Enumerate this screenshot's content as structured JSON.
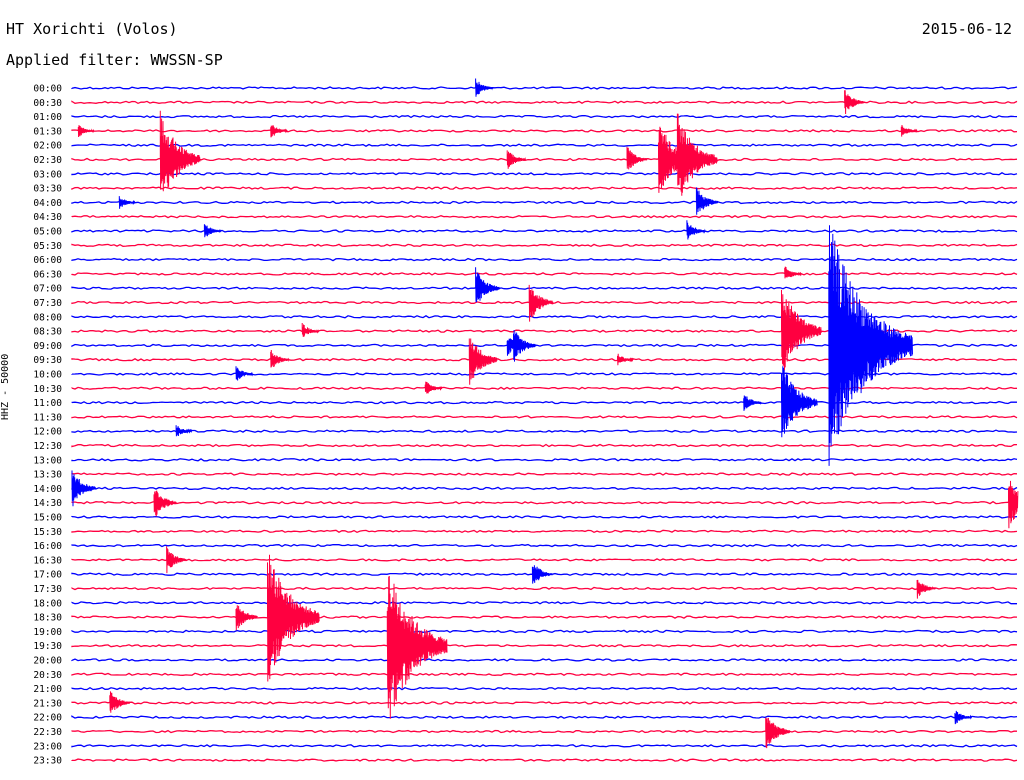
{
  "header": {
    "station": "HT Xorichti (Volos)",
    "date": "2015-06-12",
    "filter": "Applied filter: WWSSN-SP"
  },
  "chart_data": {
    "type": "line",
    "title": "HT Xorichti (Volos)",
    "ylabel": "HHZ - 50000",
    "row_labels": [
      "00:00",
      "00:30",
      "01:00",
      "01:30",
      "02:00",
      "02:30",
      "03:00",
      "03:30",
      "04:00",
      "04:30",
      "05:00",
      "05:30",
      "06:00",
      "06:30",
      "07:00",
      "07:30",
      "08:00",
      "08:30",
      "09:00",
      "09:30",
      "10:00",
      "10:30",
      "11:00",
      "11:30",
      "12:00",
      "12:30",
      "13:00",
      "13:30",
      "14:00",
      "14:30",
      "15:00",
      "15:30",
      "16:00",
      "16:30",
      "17:00",
      "17:30",
      "18:00",
      "18:30",
      "19:00",
      "19:30",
      "20:00",
      "20:30",
      "21:00",
      "21:30",
      "22:00",
      "22:30",
      "23:00",
      "23:30"
    ],
    "colors": {
      "even_rows": "#0000ff",
      "odd_rows": "#ff0040"
    },
    "x_unit": "minutes into the 30-minute row",
    "x_range": [
      0,
      30
    ],
    "events": [
      {
        "row": 0,
        "minute": 12.8,
        "amp": 0.7
      },
      {
        "row": 1,
        "minute": 24.5,
        "amp": 1.0
      },
      {
        "row": 3,
        "minute": 0.2,
        "amp": 0.5
      },
      {
        "row": 3,
        "minute": 6.3,
        "amp": 0.6
      },
      {
        "row": 3,
        "minute": 26.3,
        "amp": 0.5
      },
      {
        "row": 5,
        "minute": 13.8,
        "amp": 0.8
      },
      {
        "row": 5,
        "minute": 18.6,
        "amp": 3.0
      },
      {
        "row": 5,
        "minute": 17.6,
        "amp": 1.0
      },
      {
        "row": 5,
        "minute": 2.8,
        "amp": 3.5
      },
      {
        "row": 5,
        "minute": 19.2,
        "amp": 3.5
      },
      {
        "row": 8,
        "minute": 1.5,
        "amp": 0.5
      },
      {
        "row": 8,
        "minute": 19.8,
        "amp": 1.2
      },
      {
        "row": 10,
        "minute": 4.2,
        "amp": 0.6
      },
      {
        "row": 10,
        "minute": 19.5,
        "amp": 0.8
      },
      {
        "row": 13,
        "minute": 22.6,
        "amp": 0.6
      },
      {
        "row": 14,
        "minute": 12.8,
        "amp": 1.5
      },
      {
        "row": 15,
        "minute": 14.5,
        "amp": 1.5
      },
      {
        "row": 17,
        "minute": 22.5,
        "amp": 3.5
      },
      {
        "row": 17,
        "minute": 7.3,
        "amp": 0.6
      },
      {
        "row": 18,
        "minute": 13.8,
        "amp": 0.8
      },
      {
        "row": 19,
        "minute": 12.6,
        "amp": 2.0
      },
      {
        "row": 18,
        "minute": 14.0,
        "amp": 1.3
      },
      {
        "row": 19,
        "minute": 6.3,
        "amp": 0.8
      },
      {
        "row": 19,
        "minute": 17.3,
        "amp": 0.5
      },
      {
        "row": 20,
        "minute": 5.2,
        "amp": 0.6
      },
      {
        "row": 21,
        "minute": 11.2,
        "amp": 0.6
      },
      {
        "row": 22,
        "minute": 21.3,
        "amp": 0.7
      },
      {
        "row": 24,
        "minute": 3.3,
        "amp": 0.5
      },
      {
        "row": 28,
        "minute": 0.0,
        "amp": 1.5
      },
      {
        "row": 29,
        "minute": 2.6,
        "amp": 1.3
      },
      {
        "row": 29,
        "minute": 29.7,
        "amp": 2.0
      },
      {
        "row": 33,
        "minute": 3.0,
        "amp": 1.0
      },
      {
        "row": 34,
        "minute": 14.6,
        "amp": 1.0
      },
      {
        "row": 35,
        "minute": 26.8,
        "amp": 0.8
      },
      {
        "row": 37,
        "minute": 5.2,
        "amp": 1.2
      },
      {
        "row": 37,
        "minute": 6.2,
        "amp": 5.0
      },
      {
        "row": 39,
        "minute": 10.0,
        "amp": 6.0
      },
      {
        "row": 43,
        "minute": 1.2,
        "amp": 1.0
      },
      {
        "row": 44,
        "minute": 28.0,
        "amp": 0.6
      },
      {
        "row": 45,
        "minute": 22.0,
        "amp": 1.5
      },
      {
        "row": 18,
        "minute": 24.0,
        "amp": 9.0
      },
      {
        "row": 22,
        "minute": 22.5,
        "amp": 3.0
      }
    ]
  }
}
